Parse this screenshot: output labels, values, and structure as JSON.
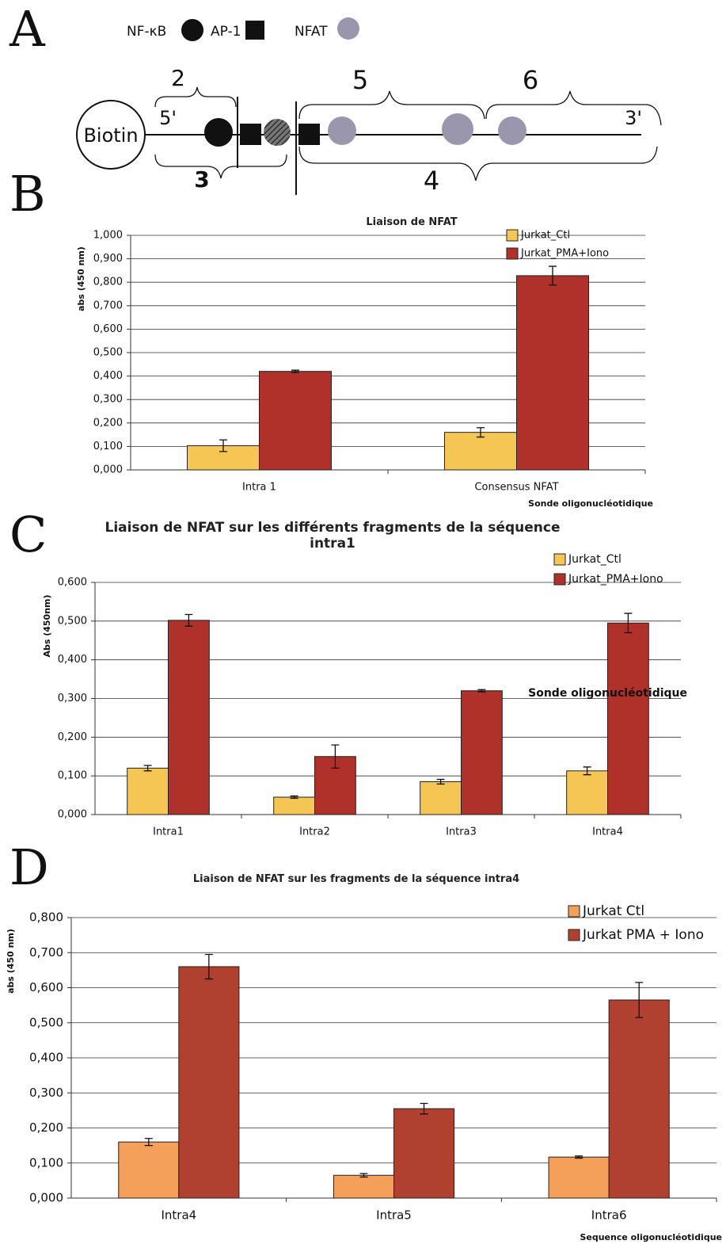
{
  "panel_labels": [
    "A",
    "B",
    "C",
    "D"
  ],
  "diagram": {
    "legend": [
      "NF-κB",
      "AP-1",
      "NFAT"
    ],
    "biotin": "Biotin",
    "five_prime": "5'",
    "three_prime": "3'",
    "braces": [
      "2",
      "3",
      "4",
      "5",
      "6"
    ]
  },
  "chart_data": [
    {
      "type": "bar",
      "title": "Liaison de NFAT",
      "y_label": "abs (450 nm)",
      "x_label": "Sonde oligonucléotidique",
      "categories": [
        "Intra 1",
        "Consensus NFAT"
      ],
      "series": [
        {
          "name": "Jurkat_Ctl",
          "color": "#f5c654",
          "values": [
            0.103,
            0.16
          ],
          "errors": [
            0.025,
            0.02
          ]
        },
        {
          "name": "Jurkat_PMA+Iono",
          "color": "#b0302a",
          "values": [
            0.42,
            0.828
          ],
          "errors": [
            0.005,
            0.04
          ]
        }
      ],
      "ylim": [
        0,
        1
      ],
      "yticks": [
        {
          "value": 0,
          "label": "0,000"
        },
        {
          "value": 0.1,
          "label": "0,100"
        },
        {
          "value": 0.2,
          "label": "0,200"
        },
        {
          "value": 0.3,
          "label": "0,300"
        },
        {
          "value": 0.4,
          "label": "0,400"
        },
        {
          "value": 0.5,
          "label": "0,500"
        },
        {
          "value": 0.6,
          "label": "0,600"
        },
        {
          "value": 0.7,
          "label": "0,700"
        },
        {
          "value": 0.8,
          "label": "0,800"
        },
        {
          "value": 0.9,
          "label": "0,900"
        },
        {
          "value": 1,
          "label": "1,000"
        }
      ],
      "grid": true,
      "legend": "top-right"
    },
    {
      "type": "bar",
      "title": "Liaison de NFAT sur les différents fragments de la séquence intra1",
      "y_label": "Abs (450nm)",
      "x_label": "Sonde oligonucléotidique",
      "categories": [
        "Intra1",
        "Intra2",
        "Intra3",
        "Intra4"
      ],
      "series": [
        {
          "name": "Jurkat_Ctl",
          "color": "#f5c654",
          "values": [
            0.12,
            0.045,
            0.085,
            0.113
          ],
          "errors": [
            0.007,
            0.003,
            0.006,
            0.01
          ]
        },
        {
          "name": "Jurkat_PMA+Iono",
          "color": "#b0302a",
          "values": [
            0.502,
            0.15,
            0.32,
            0.495
          ],
          "errors": [
            0.015,
            0.03,
            0.003,
            0.025
          ]
        }
      ],
      "ylim": [
        0,
        0.6
      ],
      "yticks": [
        {
          "value": 0,
          "label": "0,000"
        },
        {
          "value": 0.1,
          "label": "0,100"
        },
        {
          "value": 0.2,
          "label": "0,200"
        },
        {
          "value": 0.3,
          "label": "0,300"
        },
        {
          "value": 0.4,
          "label": "0,400"
        },
        {
          "value": 0.5,
          "label": "0,500"
        },
        {
          "value": 0.6,
          "label": "0,600"
        }
      ],
      "grid": true,
      "legend": "top-right"
    },
    {
      "type": "bar",
      "title": "Liaison de NFAT sur les fragments de la séquence intra4",
      "y_label": "abs (450 nm)",
      "x_label": "Sequence oligonucléotidique",
      "categories": [
        "Intra4",
        "Intra5",
        "Intra6"
      ],
      "series": [
        {
          "name": "Jurkat Ctl",
          "color": "#f5a05a",
          "values": [
            0.16,
            0.065,
            0.117
          ],
          "errors": [
            0.01,
            0.005,
            0.003
          ]
        },
        {
          "name": "Jurkat PMA + Iono",
          "color": "#b0402f",
          "values": [
            0.66,
            0.255,
            0.565
          ],
          "errors": [
            0.035,
            0.015,
            0.05
          ]
        }
      ],
      "ylim": [
        0,
        0.8
      ],
      "yticks": [
        {
          "value": 0,
          "label": "0,000"
        },
        {
          "value": 0.1,
          "label": "0,100"
        },
        {
          "value": 0.2,
          "label": "0,200"
        },
        {
          "value": 0.3,
          "label": "0,300"
        },
        {
          "value": 0.4,
          "label": "0,400"
        },
        {
          "value": 0.5,
          "label": "0,500"
        },
        {
          "value": 0.6,
          "label": "0,600"
        },
        {
          "value": 0.7,
          "label": "0,700"
        },
        {
          "value": 0.8,
          "label": "0,800"
        }
      ],
      "grid": true,
      "legend": "top-right"
    }
  ]
}
